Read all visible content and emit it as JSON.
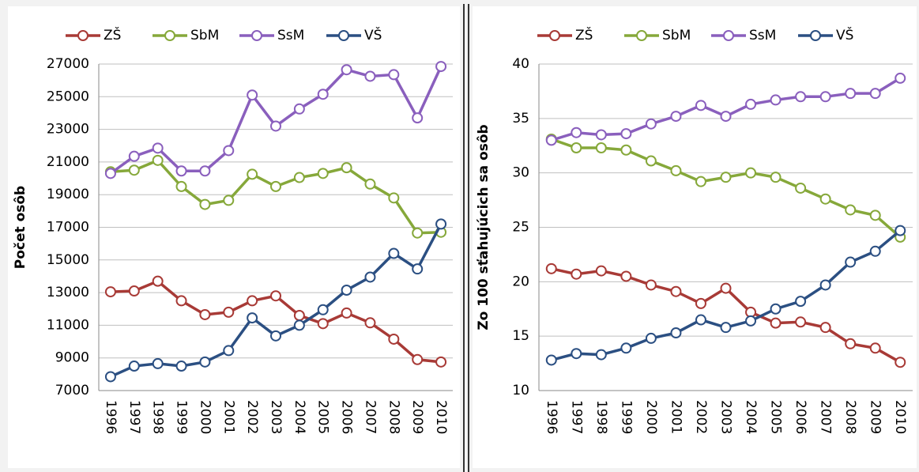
{
  "chart_data": [
    {
      "type": "line",
      "y_label": "Počet osôb",
      "categories": [
        "1996",
        "1997",
        "1998",
        "1999",
        "2000",
        "2001",
        "2002",
        "2003",
        "2004",
        "2005",
        "2006",
        "2007",
        "2008",
        "2009",
        "2010"
      ],
      "series": [
        {
          "name": "ZŠ",
          "color": "#a83a36",
          "values": [
            13050,
            13100,
            13700,
            12500,
            11650,
            11800,
            12500,
            12800,
            11600,
            11100,
            11750,
            11150,
            10150,
            8900,
            8750
          ]
        },
        {
          "name": "SbM",
          "color": "#86a83a",
          "values": [
            20400,
            20500,
            21100,
            19500,
            18400,
            18650,
            20250,
            19500,
            20050,
            20300,
            20650,
            19650,
            18800,
            16650,
            16700
          ]
        },
        {
          "name": "SsM",
          "color": "#8a5fbd",
          "values": [
            20300,
            21350,
            21850,
            20450,
            20450,
            21700,
            25100,
            23200,
            24250,
            25150,
            26650,
            26250,
            26350,
            23700,
            26850
          ]
        },
        {
          "name": "VŠ",
          "color": "#2b4f82",
          "values": [
            7850,
            8500,
            8650,
            8500,
            8750,
            9450,
            11450,
            10350,
            11000,
            11950,
            13150,
            13950,
            15400,
            14450,
            17200
          ]
        }
      ],
      "ylim": [
        7000,
        27000
      ],
      "yticks": [
        7000,
        9000,
        11000,
        13000,
        15000,
        17000,
        19000,
        21000,
        23000,
        25000,
        27000
      ],
      "grid": true,
      "legend": "top"
    },
    {
      "type": "line",
      "y_label": "Zo 100 sťahujúcich sa osôb",
      "categories": [
        "1996",
        "1997",
        "1998",
        "1999",
        "2000",
        "2001",
        "2002",
        "2003",
        "2004",
        "2005",
        "2006",
        "2007",
        "2008",
        "2009",
        "2010"
      ],
      "series": [
        {
          "name": "ZŠ",
          "color": "#a83a36",
          "values": [
            21.2,
            20.7,
            21.0,
            20.5,
            19.7,
            19.1,
            18.0,
            19.4,
            17.2,
            16.2,
            16.3,
            15.8,
            14.3,
            13.9,
            12.6
          ]
        },
        {
          "name": "SbM",
          "color": "#86a83a",
          "values": [
            33.1,
            32.3,
            32.3,
            32.1,
            31.1,
            30.2,
            29.2,
            29.6,
            30.0,
            29.6,
            28.6,
            27.6,
            26.6,
            26.1,
            24.1
          ]
        },
        {
          "name": "SsM",
          "color": "#8a5fbd",
          "values": [
            33.0,
            33.7,
            33.5,
            33.6,
            34.5,
            35.2,
            36.2,
            35.2,
            36.3,
            36.7,
            37.0,
            37.0,
            37.3,
            37.3,
            38.7
          ]
        },
        {
          "name": "VŠ",
          "color": "#2b4f82",
          "values": [
            12.8,
            13.4,
            13.3,
            13.9,
            14.8,
            15.3,
            16.5,
            15.8,
            16.4,
            17.5,
            18.2,
            19.7,
            21.8,
            22.8,
            24.7
          ]
        }
      ],
      "ylim": [
        10,
        40
      ],
      "yticks": [
        10,
        15,
        20,
        25,
        30,
        35,
        40
      ],
      "grid": true,
      "legend": "top"
    }
  ]
}
